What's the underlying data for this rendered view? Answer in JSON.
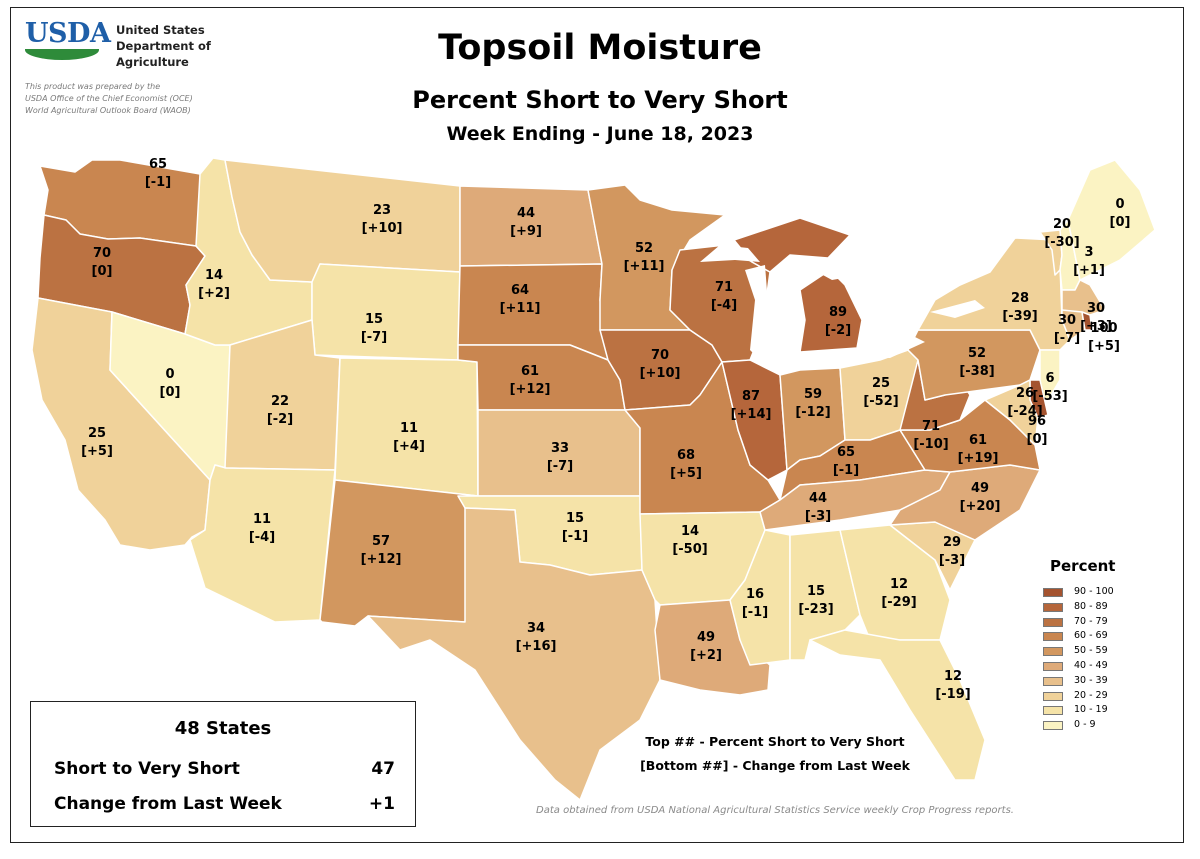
{
  "header": {
    "logo_text": "USDA",
    "agency": [
      "United States",
      "Department of",
      "Agriculture"
    ],
    "prepared_by": [
      "This product was prepared by the",
      "USDA Office of the Chief Economist (OCE)",
      "World Agricultural Outlook Board (WAOB)"
    ],
    "title": "Topsoil Moisture",
    "subtitle": "Percent Short to Very Short",
    "week": "Week Ending - June 18, 2023"
  },
  "colors": {
    "scale": [
      "#fbf3c3",
      "#f5e3a8",
      "#f0d29a",
      "#e8c08c",
      "#deaa79",
      "#d2975f",
      "#c98650",
      "#bb7242",
      "#b5663b",
      "#a4532f"
    ],
    "state_border": "#ffffff",
    "lakes": "#ffffff"
  },
  "legend": {
    "title": "Percent",
    "items": [
      {
        "label": "90 - 100",
        "color": "#a4532f"
      },
      {
        "label": "80 - 89",
        "color": "#b5663b"
      },
      {
        "label": "70 - 79",
        "color": "#bb7242"
      },
      {
        "label": "60 - 69",
        "color": "#c98650"
      },
      {
        "label": "50 - 59",
        "color": "#d2975f"
      },
      {
        "label": "40 - 49",
        "color": "#deaa79"
      },
      {
        "label": "30 - 39",
        "color": "#e8c08c"
      },
      {
        "label": "20 - 29",
        "color": "#f0d29a"
      },
      {
        "label": "10 - 19",
        "color": "#f5e3a8"
      },
      {
        "label": "0 - 9",
        "color": "#fbf3c3"
      }
    ]
  },
  "states": [
    {
      "id": "WA",
      "value": 65,
      "change": "[-1]"
    },
    {
      "id": "OR",
      "value": 70,
      "change": "[0]"
    },
    {
      "id": "CA",
      "value": 25,
      "change": "[+5]"
    },
    {
      "id": "NV",
      "value": 0,
      "change": "[0]"
    },
    {
      "id": "ID",
      "value": 14,
      "change": "[+2]"
    },
    {
      "id": "MT",
      "value": 23,
      "change": "[+10]"
    },
    {
      "id": "WY",
      "value": 15,
      "change": "[-7]"
    },
    {
      "id": "UT",
      "value": 22,
      "change": "[-2]"
    },
    {
      "id": "AZ",
      "value": 11,
      "change": "[-4]"
    },
    {
      "id": "CO",
      "value": 11,
      "change": "[+4]"
    },
    {
      "id": "NM",
      "value": 57,
      "change": "[+12]"
    },
    {
      "id": "ND",
      "value": 44,
      "change": "[+9]"
    },
    {
      "id": "SD",
      "value": 64,
      "change": "[+11]"
    },
    {
      "id": "NE",
      "value": 61,
      "change": "[+12]"
    },
    {
      "id": "KS",
      "value": 33,
      "change": "[-7]"
    },
    {
      "id": "OK",
      "value": 15,
      "change": "[-1]"
    },
    {
      "id": "TX",
      "value": 34,
      "change": "[+16]"
    },
    {
      "id": "MN",
      "value": 52,
      "change": "[+11]"
    },
    {
      "id": "IA",
      "value": 70,
      "change": "[+10]"
    },
    {
      "id": "MO",
      "value": 68,
      "change": "[+5]"
    },
    {
      "id": "AR",
      "value": 14,
      "change": "[-50]"
    },
    {
      "id": "LA",
      "value": 49,
      "change": "[+2]"
    },
    {
      "id": "WI",
      "value": 71,
      "change": "[-4]"
    },
    {
      "id": "IL",
      "value": 87,
      "change": "[+14]"
    },
    {
      "id": "MI",
      "value": 89,
      "change": "[-2]"
    },
    {
      "id": "IN",
      "value": 59,
      "change": "[-12]"
    },
    {
      "id": "OH",
      "value": 25,
      "change": "[-52]"
    },
    {
      "id": "KY",
      "value": 65,
      "change": "[-1]"
    },
    {
      "id": "TN",
      "value": 44,
      "change": "[-3]"
    },
    {
      "id": "MS",
      "value": 16,
      "change": "[-1]"
    },
    {
      "id": "AL",
      "value": 15,
      "change": "[-23]"
    },
    {
      "id": "GA",
      "value": 12,
      "change": "[-29]"
    },
    {
      "id": "FL",
      "value": 12,
      "change": "[-19]"
    },
    {
      "id": "SC",
      "value": 29,
      "change": "[-3]"
    },
    {
      "id": "NC",
      "value": 49,
      "change": "[+20]"
    },
    {
      "id": "VA",
      "value": 61,
      "change": "[+19]"
    },
    {
      "id": "WV",
      "value": 71,
      "change": "[-10]"
    },
    {
      "id": "PA",
      "value": 52,
      "change": "[-38]"
    },
    {
      "id": "NY",
      "value": 28,
      "change": "[-39]"
    },
    {
      "id": "VT",
      "value": 20,
      "change": "[-30]"
    },
    {
      "id": "NH",
      "value": 3,
      "change": "[+1]"
    },
    {
      "id": "ME",
      "value": 0,
      "change": "[0]"
    },
    {
      "id": "MA",
      "value": 30,
      "change": "[+3]"
    },
    {
      "id": "CT",
      "value": 30,
      "change": "[-7]"
    },
    {
      "id": "RI",
      "value": 100,
      "change": "[+5]"
    },
    {
      "id": "NJ",
      "value": 6,
      "change": "[-53]"
    },
    {
      "id": "DE",
      "value": 96,
      "change": "[0]"
    },
    {
      "id": "MD",
      "value": 26,
      "change": "[-24]"
    }
  ],
  "summary": {
    "heading": "48 States",
    "short_label": "Short to Very Short",
    "short_value": "47",
    "change_label": "Change from Last Week",
    "change_value": "+1"
  },
  "key_text": {
    "line1": "Top ## - Percent Short to Very Short",
    "line2": "[Bottom ##] - Change from Last Week"
  },
  "source": "Data obtained from USDA National Agricultural Statistics Service weekly Crop Progress reports."
}
